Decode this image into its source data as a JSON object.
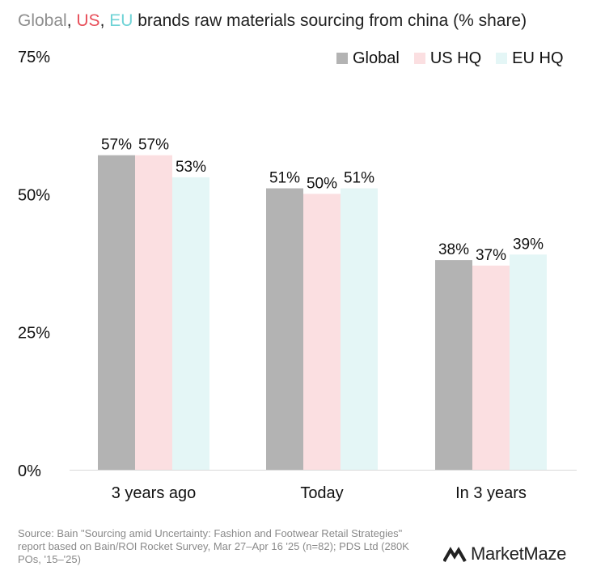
{
  "title": {
    "part_global": "Global",
    "sep1": ", ",
    "part_us": "US",
    "sep2": ", ",
    "part_eu": "EU",
    "rest": " brands raw materials sourcing from china (% share)"
  },
  "colors": {
    "global": "#b3b3b3",
    "us": "#fbdfe1",
    "eu": "#e4f6f6",
    "title_global": "#8e8e8e",
    "title_us": "#e8505b",
    "title_eu": "#6fd3d6",
    "axis": "#d9d9d9"
  },
  "chart_data": {
    "type": "bar",
    "title": "Global, US, EU brands raw materials sourcing from china (% share)",
    "categories": [
      "3 years ago",
      "Today",
      "In 3 years"
    ],
    "series": [
      {
        "name": "Global",
        "values": [
          57,
          51,
          38
        ]
      },
      {
        "name": "US HQ",
        "values": [
          57,
          50,
          37
        ]
      },
      {
        "name": "EU HQ",
        "values": [
          53,
          51,
          39
        ]
      }
    ],
    "data_labels": [
      [
        "57%",
        "51%",
        "38%"
      ],
      [
        "57%",
        "50%",
        "37%"
      ],
      [
        "53%",
        "51%",
        "39%"
      ]
    ],
    "yticks": [
      0,
      25,
      50,
      75
    ],
    "ytick_labels": [
      "0%",
      "25%",
      "50%",
      "75%"
    ],
    "ylim": [
      0,
      75
    ],
    "xlabel": "",
    "ylabel": "",
    "grid": false,
    "legend_position": "top-right"
  },
  "legend": {
    "global": "Global",
    "us": "US HQ",
    "eu": "EU HQ"
  },
  "source": "Source: Bain \"Sourcing amid Uncertainty: Fashion and Footwear Retail Strategies\" report based on Bain/ROI Rocket Survey, Mar 27–Apr 16 '25 (n=82); PDS Ltd (280K POs, '15–'25)",
  "brand": {
    "name": "MarketMaze",
    "icon": "marketmaze-logo-icon"
  }
}
